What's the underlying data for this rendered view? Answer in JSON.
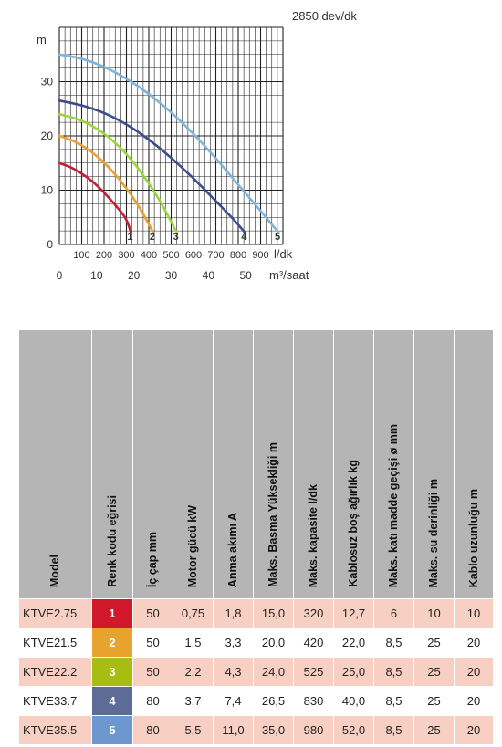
{
  "chart_data": {
    "type": "line",
    "title": "2850 dev/dk",
    "ylabel": "m",
    "xlabel_primary": "l/dk",
    "xlabel_secondary": "m³/saat",
    "ylim": [
      0,
      40
    ],
    "xlim": [
      0,
      1000
    ],
    "y_ticks": [
      "0",
      "10",
      "20",
      "30"
    ],
    "x_ticks_primary": [
      "100",
      "200",
      "300",
      "400",
      "500",
      "600",
      "700",
      "800",
      "900"
    ],
    "x_ticks_secondary": [
      "0",
      "10",
      "20",
      "30",
      "40",
      "50"
    ],
    "grid": true,
    "series": [
      {
        "name": "1",
        "color": "#c0203a",
        "points": [
          [
            0,
            15
          ],
          [
            50,
            14.3
          ],
          [
            100,
            13.1
          ],
          [
            150,
            11.6
          ],
          [
            200,
            9.6
          ],
          [
            250,
            7.3
          ],
          [
            300,
            4.8
          ],
          [
            320,
            2.2
          ]
        ]
      },
      {
        "name": "2",
        "color": "#e8a030",
        "points": [
          [
            0,
            20
          ],
          [
            60,
            19.2
          ],
          [
            120,
            17.8
          ],
          [
            180,
            15.9
          ],
          [
            240,
            13.4
          ],
          [
            300,
            10.4
          ],
          [
            360,
            6.8
          ],
          [
            420,
            2.2
          ]
        ]
      },
      {
        "name": "3",
        "color": "#9ad63a",
        "points": [
          [
            0,
            24
          ],
          [
            80,
            23.2
          ],
          [
            160,
            21.6
          ],
          [
            240,
            19.2
          ],
          [
            320,
            15.8
          ],
          [
            400,
            11.4
          ],
          [
            470,
            6.6
          ],
          [
            525,
            2.2
          ]
        ]
      },
      {
        "name": "4",
        "color": "#3a4f8c",
        "points": [
          [
            0,
            26.5
          ],
          [
            100,
            25.7
          ],
          [
            200,
            24.3
          ],
          [
            300,
            22.2
          ],
          [
            400,
            19.4
          ],
          [
            500,
            16.0
          ],
          [
            600,
            12.2
          ],
          [
            700,
            8.0
          ],
          [
            780,
            4.6
          ],
          [
            830,
            2.2
          ]
        ]
      },
      {
        "name": "5",
        "color": "#7fb4dc",
        "points": [
          [
            0,
            35
          ],
          [
            100,
            34.3
          ],
          [
            200,
            32.8
          ],
          [
            300,
            30.6
          ],
          [
            400,
            27.8
          ],
          [
            500,
            24.4
          ],
          [
            600,
            20.4
          ],
          [
            700,
            15.9
          ],
          [
            800,
            11.0
          ],
          [
            900,
            6.2
          ],
          [
            980,
            2.2
          ]
        ]
      }
    ]
  },
  "table": {
    "headers": [
      "Model",
      "Renk kodu eğrisi",
      "İç çap mm",
      "Motor gücü kW",
      "Anma akımı A",
      "Maks. Basma Yüksekliği m",
      "Maks. kapasite l/dk",
      "Kablosuz boş ağırlık kg",
      "Maks. katı madde geçişi ø mm",
      "Maks. su derinliği m",
      "Kablo uzunluğu m"
    ],
    "rows": [
      {
        "model": "KTVE2.75",
        "code": "1",
        "code_color": "#d0182a",
        "ic_cap": "50",
        "motor": "0,75",
        "akim": "1,8",
        "basma": "15,0",
        "kapasite": "320",
        "agirlik": "12,7",
        "kati": "6",
        "derinlik": "10",
        "kablo": "10"
      },
      {
        "model": "KTVE21.5",
        "code": "2",
        "code_color": "#e8a32e",
        "ic_cap": "50",
        "motor": "1,5",
        "akim": "3,3",
        "basma": "20,0",
        "kapasite": "420",
        "agirlik": "22,0",
        "kati": "8,5",
        "derinlik": "25",
        "kablo": "20"
      },
      {
        "model": "KTVE22.2",
        "code": "3",
        "code_color": "#a8bd12",
        "ic_cap": "50",
        "motor": "2,2",
        "akim": "4,3",
        "basma": "24,0",
        "kapasite": "525",
        "agirlik": "25,0",
        "kati": "8,5",
        "derinlik": "25",
        "kablo": "20"
      },
      {
        "model": "KTVE33.7",
        "code": "4",
        "code_color": "#5d6b96",
        "ic_cap": "80",
        "motor": "3,7",
        "akim": "7,4",
        "basma": "26,5",
        "kapasite": "830",
        "agirlik": "40,0",
        "kati": "8,5",
        "derinlik": "25",
        "kablo": "20"
      },
      {
        "model": "KTVE35.5",
        "code": "5",
        "code_color": "#6d97cf",
        "ic_cap": "80",
        "motor": "5,5",
        "akim": "11,0",
        "basma": "35,0",
        "kapasite": "980",
        "agirlik": "52,0",
        "kati": "8,5",
        "derinlik": "25",
        "kablo": "20"
      }
    ]
  }
}
